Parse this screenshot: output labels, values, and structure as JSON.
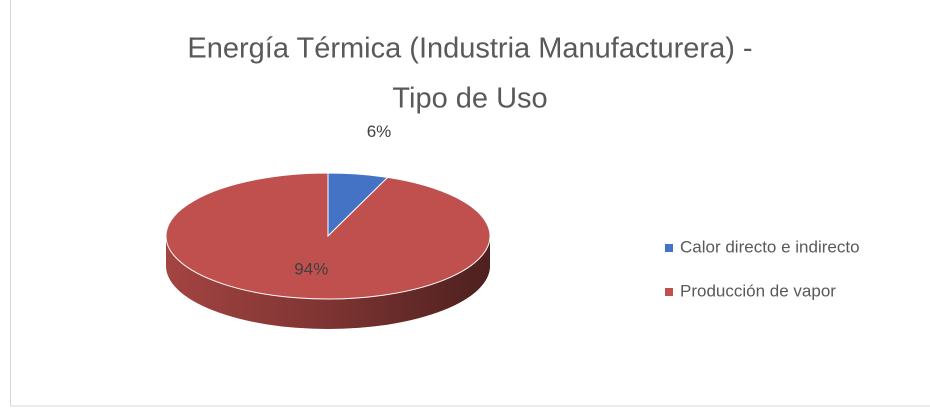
{
  "chart_data": {
    "type": "pie",
    "title": [
      "Energía Térmica (Industria Manufacturera) -",
      "Tipo de Uso"
    ],
    "categories": [
      "Calor directo e indirecto",
      "Producción de vapor"
    ],
    "values": [
      6,
      94
    ],
    "value_labels": [
      "6%",
      "94%"
    ],
    "colors": [
      "#4472c4",
      "#c0504d"
    ],
    "legend": "right"
  }
}
